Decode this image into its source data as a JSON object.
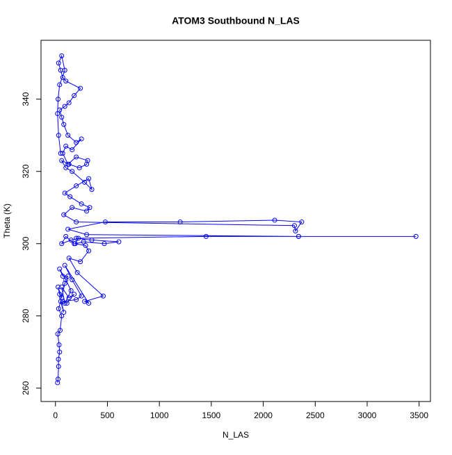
{
  "chart_data": {
    "type": "line",
    "title": "ATOM3 Southbound N_LAS",
    "x_label": "N_LAS",
    "y_label": "Theta (K)",
    "markers": "open-circle",
    "grid": false,
    "xlim": [
      -139,
      3609
    ],
    "xticks": [
      0,
      500,
      1000,
      1500,
      2000,
      2500,
      3000,
      3500
    ],
    "ylim": [
      256.3,
      356.3
    ],
    "yticks": [
      260,
      280,
      300,
      320,
      340
    ],
    "x": [
      20,
      25,
      30,
      28,
      40,
      35,
      22,
      45,
      60,
      30,
      50,
      80,
      40,
      25,
      60,
      90,
      120,
      70,
      40,
      100,
      150,
      90,
      60,
      130,
      180,
      110,
      70,
      200,
      250,
      160,
      90,
      320,
      280,
      460,
      210,
      130,
      240,
      320,
      290,
      180,
      100,
      60,
      150,
      220,
      190,
      270,
      470,
      610,
      350,
      200,
      1450,
      2340,
      3470,
      2340,
      300,
      120,
      480,
      1200,
      2110,
      2370,
      2310,
      2300,
      200,
      80,
      160,
      300,
      330,
      250,
      140,
      90,
      200,
      320,
      350,
      280,
      160,
      100,
      60,
      130,
      230,
      300,
      310,
      200,
      120,
      70,
      100,
      160,
      250,
      200,
      120,
      80,
      60,
      40,
      90,
      130,
      180,
      240,
      100,
      70,
      50,
      30,
      60,
      90,
      40,
      25,
      20,
      30,
      50
    ],
    "series": [
      {
        "color": "#0000ff",
        "values": [
          261.5,
          262.5,
          266,
          268,
          270,
          272,
          275,
          276,
          280,
          282,
          284,
          281,
          286,
          288,
          285,
          289,
          291,
          291,
          293,
          290,
          287,
          283.5,
          288,
          285,
          286,
          283.5,
          284,
          284.5,
          285.5,
          290,
          294,
          283.5,
          284,
          285.5,
          292,
          296,
          295,
          298,
          299.5,
          300,
          302,
          300,
          301,
          301.5,
          300,
          300.5,
          300,
          300.5,
          301,
          301.5,
          302,
          302,
          302,
          302,
          302.5,
          304,
          306,
          306,
          306.5,
          306,
          303.5,
          305,
          306,
          308,
          310,
          309,
          310,
          311,
          313,
          314,
          316,
          318,
          315,
          317,
          320,
          321,
          323,
          322,
          321,
          322,
          323,
          324,
          322,
          325,
          327,
          326,
          329,
          328,
          330,
          333,
          335,
          337,
          338,
          339,
          341,
          343,
          345,
          346,
          348,
          350,
          352,
          348,
          344,
          340,
          336,
          330,
          325
        ]
      }
    ]
  }
}
